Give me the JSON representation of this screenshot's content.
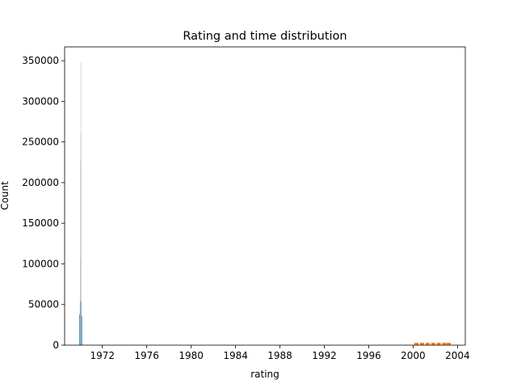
{
  "chart_data": {
    "type": "bar",
    "title": "Rating and time distribution",
    "xlabel": "rating",
    "ylabel": "Count",
    "xlim": [
      1968.6,
      2004.7
    ],
    "ylim": [
      0,
      367000
    ],
    "x_ticks": [
      1972,
      1976,
      1980,
      1984,
      1988,
      1992,
      1996,
      2000,
      2004
    ],
    "x_tick_labels": [
      "1972",
      "1976",
      "1980",
      "1984",
      "1988",
      "1992",
      "1996",
      "2000",
      "2004"
    ],
    "y_ticks": [
      0,
      50000,
      100000,
      150000,
      200000,
      250000,
      300000,
      350000
    ],
    "y_tick_labels": [
      "0",
      "50000",
      "100000",
      "150000",
      "200000",
      "250000",
      "300000",
      "350000"
    ],
    "grid": false,
    "series": [
      {
        "color": "#1f77b4",
        "bars": [
          {
            "x": 1970.0,
            "value": 38000
          },
          {
            "x": 1970.05,
            "value": 54000
          },
          {
            "x": 1970.1,
            "value": 36000
          }
        ]
      },
      {
        "color": "#bbbbbb",
        "bars": [
          {
            "x": 1970.02,
            "value": 107000
          },
          {
            "x": 1970.04,
            "value": 226000
          },
          {
            "x": 1970.06,
            "value": 260000
          },
          {
            "x": 1970.08,
            "value": 348000
          }
        ]
      },
      {
        "color": "#ff7f0e",
        "bars": [
          {
            "x": 2000.3,
            "value": 3000
          },
          {
            "x": 2000.8,
            "value": 3000
          },
          {
            "x": 2001.3,
            "value": 3000
          },
          {
            "x": 2001.8,
            "value": 3000
          },
          {
            "x": 2002.3,
            "value": 3000
          },
          {
            "x": 2002.8,
            "value": 3000
          },
          {
            "x": 2003.2,
            "value": 3000
          }
        ]
      }
    ]
  }
}
